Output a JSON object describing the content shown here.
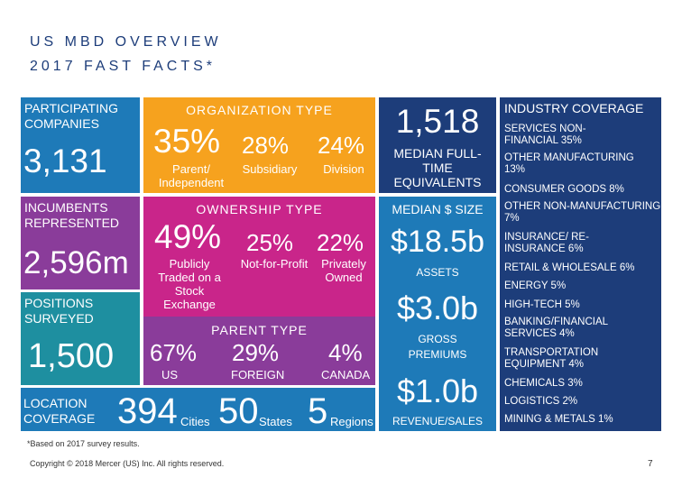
{
  "title": {
    "line1": "US MBD OVERVIEW",
    "line2": "2017 FAST FACTS*"
  },
  "colors": {
    "blue": "#1e7ab8",
    "purple": "#8a3c9a",
    "orange": "#f6a21e",
    "magenta": "#c9258a",
    "teal": "#1e8fa0",
    "navy": "#1d3d7a"
  },
  "participating": {
    "label": "PARTICIPATING COMPANIES",
    "value": "3,131"
  },
  "incumbents": {
    "label": "INCUMBENTS REPRESENTED",
    "value": "2,596m"
  },
  "positions": {
    "label": "POSITIONS SURVEYED",
    "value": "1,500"
  },
  "organization": {
    "label": "ORGANIZATION TYPE",
    "items": [
      {
        "pct": "35%",
        "name": "Parent/ Independent"
      },
      {
        "pct": "28%",
        "name": "Subsidiary"
      },
      {
        "pct": "24%",
        "name": "Division"
      }
    ]
  },
  "ownership": {
    "label": "OWNERSHIP TYPE",
    "items": [
      {
        "pct": "49%",
        "name": "Publicly Traded on a Stock Exchange"
      },
      {
        "pct": "25%",
        "name": "Not-for-Profit"
      },
      {
        "pct": "22%",
        "name": "Privately Owned"
      }
    ]
  },
  "parent": {
    "label": "PARENT TYPE",
    "items": [
      {
        "pct": "67%",
        "name": "US"
      },
      {
        "pct": "29%",
        "name": "FOREIGN"
      },
      {
        "pct": "4%",
        "name": "CANADA"
      }
    ]
  },
  "location": {
    "label": "LOCATION COVERAGE",
    "items": [
      {
        "value": "394",
        "unit": "Cities"
      },
      {
        "value": "50",
        "unit": "States"
      },
      {
        "value": "5",
        "unit": "Regions"
      }
    ]
  },
  "fte": {
    "value": "1,518",
    "label": "MEDIAN FULL-TIME EQUIVALENTS"
  },
  "median_size": {
    "label": "MEDIAN $ SIZE",
    "assets": {
      "value": "$18.5b",
      "label": "ASSETS"
    },
    "gross": {
      "value": "$3.0b",
      "label": "GROSS PREMIUMS"
    },
    "revenue": {
      "value": "$1.0b",
      "label": "REVENUE/SALES"
    }
  },
  "industry": {
    "title": "INDUSTRY COVERAGE",
    "items": [
      "SERVICES NON-FINANCIAL 35%",
      "OTHER MANUFACTURING 13%",
      "CONSUMER GOODS 8%",
      "OTHER NON-MANUFACTURING 7%",
      "INSURANCE/ RE-INSURANCE 6%",
      "RETAIL & WHOLESALE 6%",
      "ENERGY 5%",
      "HIGH-TECH 5%",
      "BANKING/FINANCIAL SERVICES 4%",
      "TRANSPORTATION EQUIPMENT 4%",
      "CHEMICALS 3%",
      "LOGISTICS 2%",
      "MINING & METALS 1%"
    ]
  },
  "footnote": "*Based on 2017 survey results.",
  "copyright": "Copyright © 2018 Mercer (US) Inc. All rights reserved.",
  "page_number": "7"
}
